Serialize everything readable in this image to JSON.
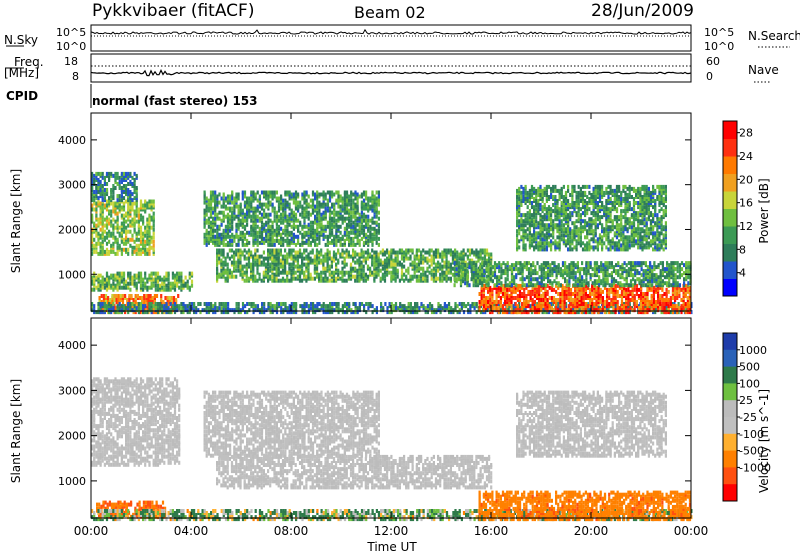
{
  "header": {
    "station": "Pykkvibaer (fitACF)",
    "beam": "Beam 02",
    "date": "28/Jun/2009"
  },
  "panels": {
    "nsky": {
      "label": "N.Sky",
      "left_top": "10^5",
      "left_bot": "10^0",
      "right_top": "10^5",
      "right_bot": "10^0",
      "right_label": "N.Search"
    },
    "freq": {
      "label_line1": "Freq.",
      "label_line2": "[MHz]",
      "left_top": "18",
      "left_bot": "8",
      "right_top": "60",
      "right_bot": "0",
      "right_label": "Nave"
    },
    "cpid": {
      "label": "CPID",
      "mode": "normal (fast stereo) 153"
    }
  },
  "colors": {
    "power_scale": [
      "#0000ff",
      "#2255cc",
      "#2e7d5a",
      "#3c9a55",
      "#6fbf40",
      "#c8d53a",
      "#f0a020",
      "#ff7a00",
      "#ff3010",
      "#ff0000"
    ],
    "velocity_scale": [
      "#1e3caa",
      "#2a62b8",
      "#2e7a4a",
      "#6ec040",
      "#bcbcbc",
      "#c0c0c0",
      "#ffb030",
      "#ff8000",
      "#ff5010",
      "#ff0000"
    ]
  },
  "chart_data": [
    {
      "type": "heatmap",
      "title": "",
      "xlabel": "Time UT",
      "ylabel": "Slant Range [km]",
      "x_ticks": [
        "00:00",
        "04:00",
        "08:00",
        "12:00",
        "16:00",
        "20:00",
        "00:00"
      ],
      "y_ticks": [
        "1000",
        "2000",
        "3000",
        "4000"
      ],
      "ylim": [
        180,
        4600
      ],
      "colorbar_label": "Power [dB]",
      "colorbar_ticks": [
        "4",
        "8",
        "12",
        "16",
        "20",
        "24",
        "28"
      ],
      "colorbar_range": [
        0,
        30
      ],
      "echo_bands": [
        {
          "t0": 0.0,
          "t1": 2.5,
          "r0": 1500,
          "r1": 2700,
          "value": 14
        },
        {
          "t0": 0.0,
          "t1": 1.8,
          "r0": 2700,
          "r1": 3300,
          "value": 8
        },
        {
          "t0": 0.0,
          "t1": 4.0,
          "r0": 700,
          "r1": 1100,
          "value": 12
        },
        {
          "t0": 0.3,
          "t1": 3.5,
          "r0": 200,
          "r1": 600,
          "value": 22
        },
        {
          "t0": 4.5,
          "t1": 11.5,
          "r0": 1700,
          "r1": 2900,
          "value": 10
        },
        {
          "t0": 5.0,
          "t1": 16.0,
          "r0": 900,
          "r1": 1600,
          "value": 11
        },
        {
          "t0": 0.0,
          "t1": 24.0,
          "r0": 200,
          "r1": 400,
          "value": 8
        },
        {
          "t0": 15.5,
          "t1": 24.0,
          "r0": 200,
          "r1": 800,
          "value": 24
        },
        {
          "t0": 14.5,
          "t1": 24.0,
          "r0": 800,
          "r1": 1300,
          "value": 10
        },
        {
          "t0": 17.0,
          "t1": 23.0,
          "r0": 1600,
          "r1": 3000,
          "value": 10
        }
      ]
    },
    {
      "type": "heatmap",
      "title": "",
      "xlabel": "Time UT",
      "ylabel": "Slant Range [km]",
      "x_ticks": [
        "00:00",
        "04:00",
        "08:00",
        "12:00",
        "16:00",
        "20:00",
        "00:00"
      ],
      "y_ticks": [
        "1000",
        "2000",
        "3000",
        "4000"
      ],
      "ylim": [
        180,
        4600
      ],
      "colorbar_label": "Velocity [m s^-1]",
      "colorbar_ticks": [
        "1000",
        "500",
        "100",
        "25",
        "-25",
        "-100",
        "-500",
        "-1000"
      ],
      "echo_bands": [
        {
          "t0": 0.0,
          "t1": 3.5,
          "r0": 1400,
          "r1": 3300,
          "value": 0
        },
        {
          "t0": 0.2,
          "t1": 3.0,
          "r0": 250,
          "r1": 600,
          "value": -300
        },
        {
          "t0": 4.5,
          "t1": 11.5,
          "r0": 1600,
          "r1": 3000,
          "value": 0
        },
        {
          "t0": 5.0,
          "t1": 16.0,
          "r0": 900,
          "r1": 1600,
          "value": 0
        },
        {
          "t0": 0.0,
          "t1": 24.0,
          "r0": 200,
          "r1": 420,
          "value": 60
        },
        {
          "t0": 15.5,
          "t1": 24.0,
          "r0": 200,
          "r1": 800,
          "value": -200
        },
        {
          "t0": 17.0,
          "t1": 23.0,
          "r0": 1600,
          "r1": 3000,
          "value": 0
        }
      ]
    }
  ]
}
